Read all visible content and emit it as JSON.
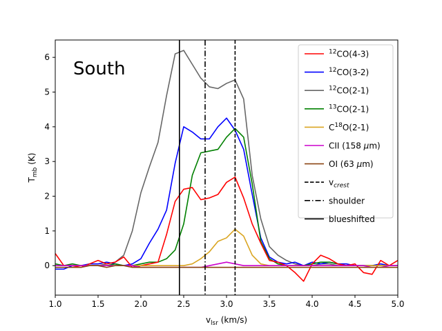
{
  "chart_data": {
    "type": "line",
    "annotation": "South",
    "xlabel": {
      "main": "v",
      "sub": "lsr",
      "rest": " (km/s)"
    },
    "ylabel": {
      "main": "T",
      "sub": "mb",
      "rest": " (K)"
    },
    "xlim": [
      1.0,
      5.0
    ],
    "ylim": [
      -0.85,
      6.5
    ],
    "xticks": [
      1.0,
      1.5,
      2.0,
      2.5,
      3.0,
      3.5,
      4.0,
      4.5,
      5.0
    ],
    "xtick_labels": [
      "1.0",
      "1.5",
      "2.0",
      "2.5",
      "3.0",
      "3.5",
      "4.0",
      "4.5",
      "5.0"
    ],
    "yticks": [
      0,
      1,
      2,
      3,
      4,
      5,
      6
    ],
    "ytick_labels": [
      "0",
      "1",
      "2",
      "3",
      "4",
      "5",
      "6"
    ],
    "legend_position": "top-right",
    "vlines": [
      {
        "x": 2.45,
        "style": "solid",
        "label": "blueshifted"
      },
      {
        "x": 2.75,
        "style": "dashdot",
        "label": "shoulder"
      },
      {
        "x": 3.1,
        "style": "dashed",
        "label": "v",
        "label_sub": "crest"
      }
    ],
    "legend": [
      {
        "sup": "12",
        "text": "CO(4-3)",
        "color": "#ff0000",
        "style": "solid"
      },
      {
        "sup": "12",
        "text": "CO(3-2)",
        "color": "#0000ff",
        "style": "solid"
      },
      {
        "sup": "12",
        "text": "CO(2-1)",
        "color": "#666666",
        "style": "solid"
      },
      {
        "sup": "13",
        "text": "CO(2-1)",
        "color": "#008000",
        "style": "solid"
      },
      {
        "prefix": "C",
        "sup": "18",
        "text": "O(2-1)",
        "color": "#daa520",
        "style": "solid"
      },
      {
        "text": "CII (158 ",
        "mu": "μ",
        "after": "m)",
        "color": "#cc00cc",
        "style": "solid"
      },
      {
        "text": "OI (63 ",
        "mu": "μ",
        "after": "m)",
        "color": "#8b4513",
        "style": "solid"
      },
      {
        "text": "v",
        "sub": "crest",
        "color": "#000000",
        "style": "dashed"
      },
      {
        "text": "shoulder",
        "color": "#000000",
        "style": "dashdot"
      },
      {
        "text": "blueshifted",
        "color": "#000000",
        "style": "solid"
      }
    ],
    "x": [
      1.0,
      1.1,
      1.2,
      1.3,
      1.4,
      1.5,
      1.6,
      1.7,
      1.8,
      1.9,
      2.0,
      2.1,
      2.2,
      2.3,
      2.4,
      2.5,
      2.6,
      2.7,
      2.8,
      2.9,
      3.0,
      3.1,
      3.2,
      3.3,
      3.4,
      3.5,
      3.6,
      3.7,
      3.8,
      3.9,
      4.0,
      4.1,
      4.2,
      4.3,
      4.4,
      4.5,
      4.6,
      4.7,
      4.8,
      4.9,
      5.0
    ],
    "series": [
      {
        "color": "#666666",
        "values": [
          0.0,
          0.0,
          0.0,
          0.0,
          0.0,
          0.0,
          0.05,
          0.1,
          0.3,
          1.0,
          2.1,
          2.85,
          3.55,
          4.9,
          6.1,
          6.2,
          5.8,
          5.4,
          5.15,
          5.1,
          5.25,
          5.35,
          4.8,
          2.6,
          1.35,
          0.55,
          0.3,
          0.15,
          0.05,
          0.0,
          0.0,
          0.05,
          0.05,
          0.0,
          0.0,
          0.0,
          0.0,
          0.0,
          0.0,
          0.0,
          0.0
        ]
      },
      {
        "color": "#0000ff",
        "values": [
          -0.1,
          -0.1,
          0.0,
          0.0,
          0.05,
          0.05,
          0.1,
          0.05,
          0.0,
          0.05,
          0.2,
          0.65,
          1.05,
          1.6,
          2.95,
          4.0,
          3.85,
          3.65,
          3.65,
          4.0,
          4.25,
          3.9,
          3.35,
          2.05,
          0.8,
          0.25,
          0.1,
          0.05,
          0.1,
          0.0,
          0.1,
          0.05,
          0.1,
          0.05,
          0.05,
          0.0,
          0.0,
          0.0,
          0.05,
          0.0,
          0.0
        ]
      },
      {
        "color": "#008000",
        "values": [
          0.05,
          0.0,
          0.05,
          0.0,
          0.0,
          0.0,
          0.0,
          0.05,
          0.0,
          0.0,
          0.05,
          0.1,
          0.1,
          0.2,
          0.45,
          1.2,
          2.6,
          3.25,
          3.3,
          3.35,
          3.7,
          3.95,
          3.7,
          2.35,
          0.7,
          0.2,
          0.05,
          0.0,
          0.0,
          0.0,
          0.05,
          0.1,
          0.1,
          0.05,
          0.0,
          0.0,
          0.0,
          0.0,
          0.0,
          0.0,
          0.0
        ]
      },
      {
        "color": "#ff0000",
        "values": [
          0.35,
          0.0,
          0.0,
          -0.05,
          0.05,
          0.15,
          0.05,
          0.1,
          0.25,
          -0.05,
          0.0,
          0.05,
          0.1,
          0.9,
          1.85,
          2.2,
          2.25,
          1.9,
          1.95,
          2.05,
          2.4,
          2.55,
          1.95,
          1.2,
          0.65,
          0.15,
          0.1,
          0.0,
          -0.2,
          -0.45,
          0.05,
          0.3,
          0.2,
          0.05,
          0.0,
          0.05,
          -0.2,
          -0.25,
          0.15,
          0.0,
          0.15
        ]
      },
      {
        "color": "#daa520",
        "values": [
          0.0,
          0.0,
          0.0,
          0.0,
          0.0,
          0.0,
          0.0,
          0.0,
          0.0,
          0.0,
          0.0,
          0.0,
          0.0,
          0.0,
          0.0,
          0.0,
          0.05,
          0.2,
          0.4,
          0.7,
          0.8,
          1.05,
          0.85,
          0.3,
          0.05,
          0.0,
          0.0,
          0.0,
          0.0,
          0.0,
          0.0,
          0.0,
          0.0,
          0.0,
          0.0,
          0.0,
          0.0,
          0.0,
          0.0,
          0.0,
          0.0
        ]
      },
      {
        "color": "#cc00cc",
        "values": [
          0.0,
          0.0,
          0.0,
          0.0,
          0.0,
          0.0,
          0.0,
          0.0,
          0.0,
          0.0,
          -0.05,
          -0.05,
          -0.05,
          -0.05,
          -0.05,
          -0.05,
          -0.05,
          -0.05,
          0.0,
          0.05,
          0.1,
          0.05,
          0.0,
          0.0,
          0.0,
          0.0,
          0.0,
          0.0,
          0.0,
          0.0,
          0.0,
          0.0,
          0.0,
          0.0,
          0.0,
          0.0,
          0.0,
          -0.05,
          -0.05,
          0.0,
          0.0
        ]
      },
      {
        "color": "#8b4513",
        "values": [
          -0.05,
          -0.05,
          -0.05,
          -0.05,
          0.0,
          0.0,
          -0.05,
          0.0,
          0.0,
          -0.05,
          -0.05,
          -0.05,
          -0.05,
          -0.05,
          -0.05,
          -0.05,
          -0.05,
          -0.05,
          -0.05,
          -0.05,
          -0.05,
          -0.05,
          -0.05,
          -0.05,
          -0.05,
          -0.05,
          -0.05,
          -0.05,
          -0.05,
          -0.05,
          -0.05,
          -0.05,
          -0.05,
          -0.05,
          -0.05,
          -0.05,
          -0.05,
          -0.05,
          -0.05,
          -0.05,
          -0.05
        ]
      }
    ]
  }
}
